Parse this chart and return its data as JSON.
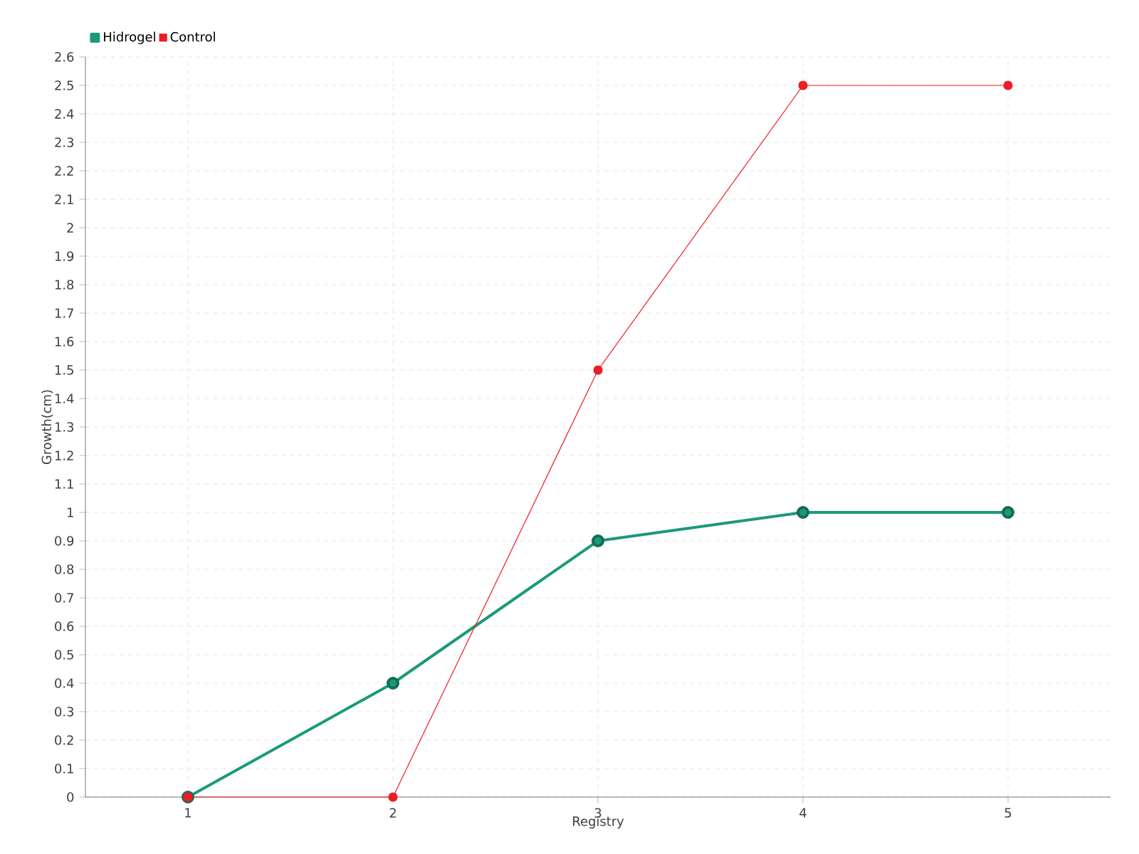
{
  "chart_data": {
    "type": "line",
    "xlabel": "Registry",
    "ylabel": "Growth(cm)",
    "categories": [
      "1",
      "2",
      "3",
      "4",
      "5"
    ],
    "series": [
      {
        "name": "Hidrogel",
        "color": "#1b9a7a",
        "values": [
          0,
          0.4,
          0.9,
          1,
          1
        ]
      },
      {
        "name": "Control",
        "color": "#ee1c25",
        "values": [
          0,
          0,
          1.5,
          2.5,
          2.5
        ]
      }
    ],
    "ylim": [
      0,
      2.6
    ],
    "yticks": [
      0,
      0.1,
      0.2,
      0.3,
      0.4,
      0.5,
      0.6,
      0.7,
      0.8,
      0.9,
      1,
      1.1,
      1.2,
      1.3,
      1.4,
      1.5,
      1.6,
      1.7,
      1.8,
      1.9,
      2,
      2.1,
      2.2,
      2.3,
      2.4,
      2.5,
      2.6
    ],
    "grid": true,
    "legend": "top left",
    "marker": "circle",
    "line_style": "solid"
  }
}
